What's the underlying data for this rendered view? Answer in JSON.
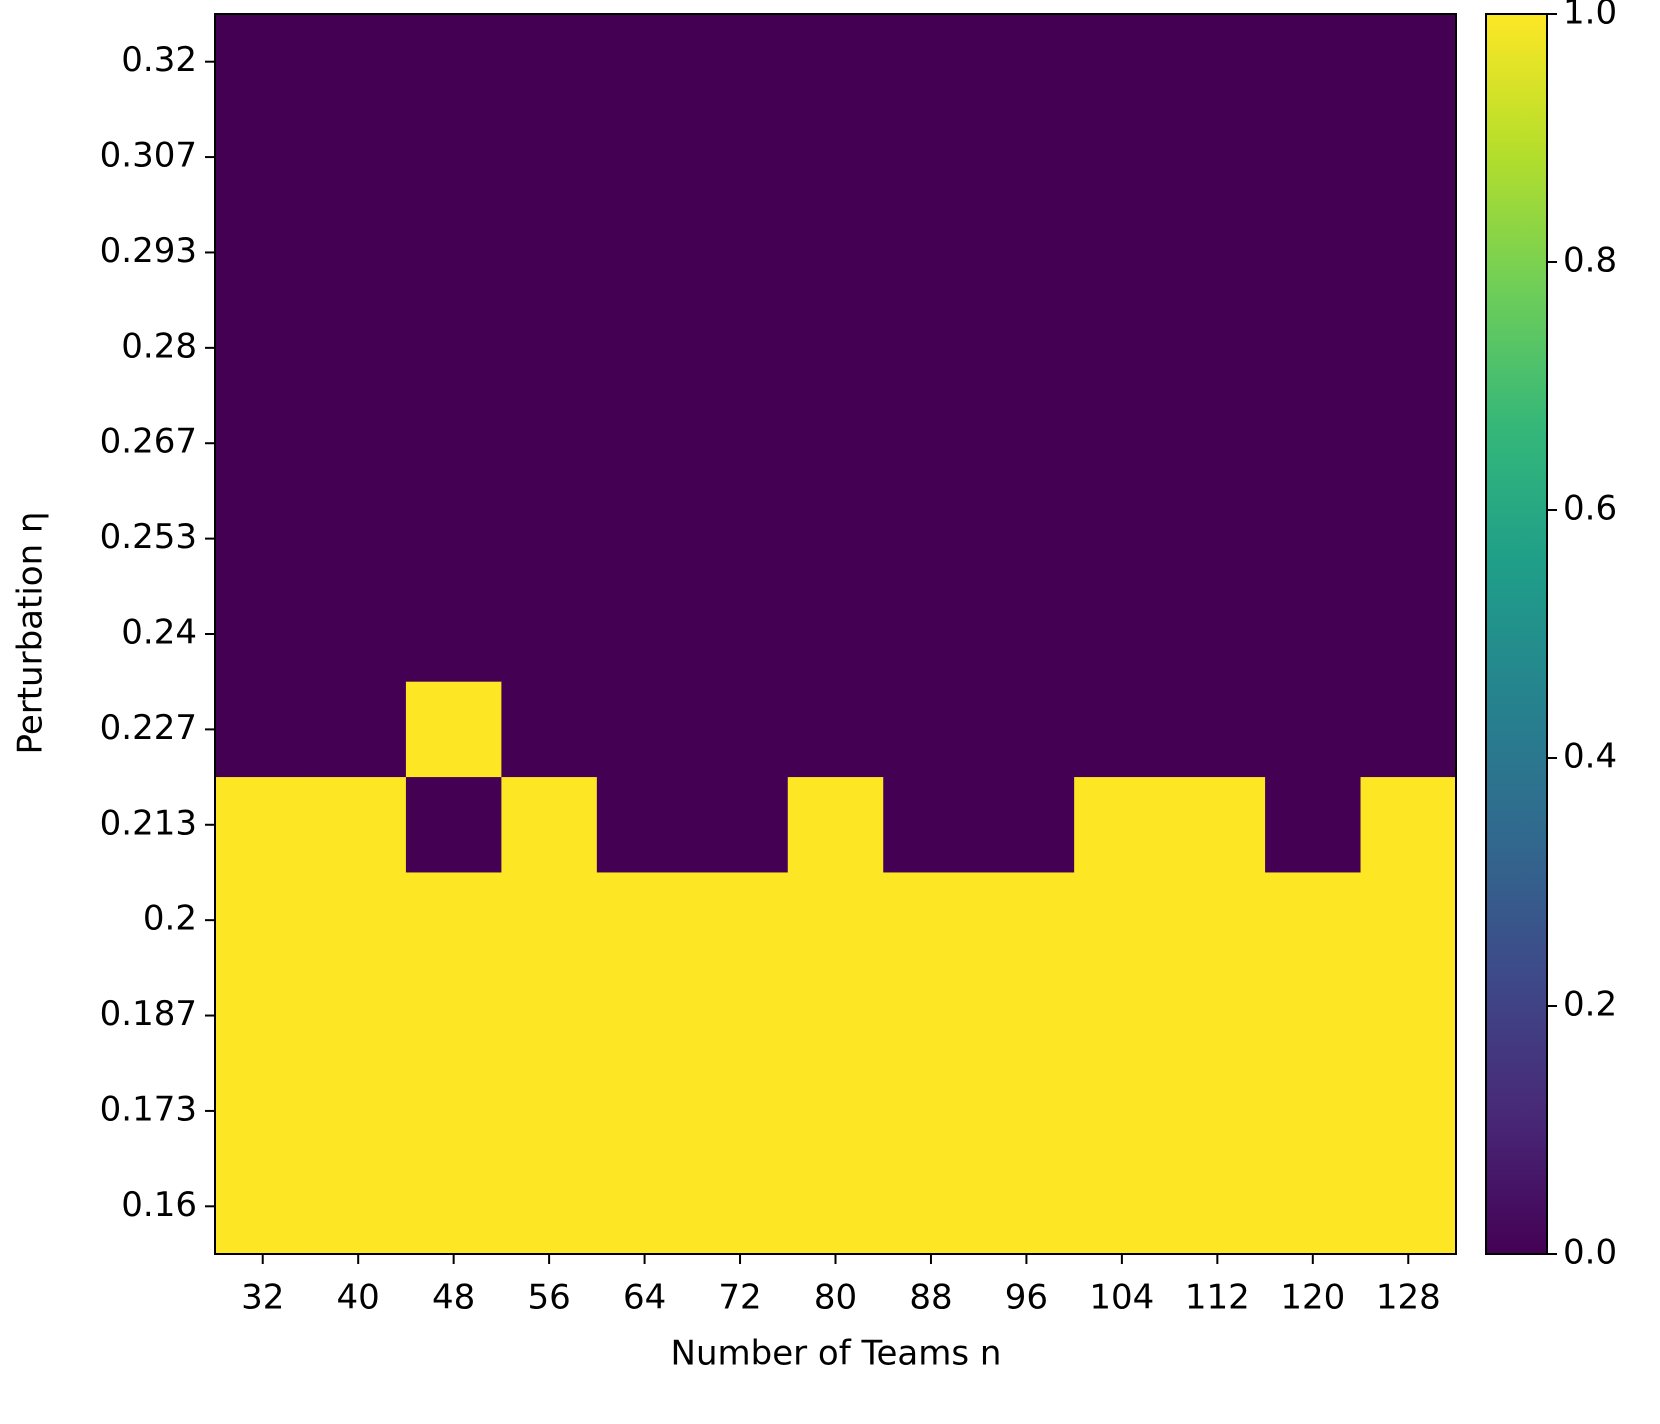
{
  "chart_data": {
    "type": "heatmap",
    "x_label": "Number of Teams n",
    "y_label": "Perturbation η",
    "x": [
      32,
      40,
      48,
      56,
      64,
      72,
      80,
      88,
      96,
      104,
      112,
      120,
      128
    ],
    "y": [
      0.32,
      0.307,
      0.293,
      0.28,
      0.267,
      0.253,
      0.24,
      0.227,
      0.213,
      0.2,
      0.187,
      0.173,
      0.16
    ],
    "values": [
      [
        0,
        0,
        0,
        0,
        0,
        0,
        0,
        0,
        0,
        0,
        0,
        0,
        0
      ],
      [
        0,
        0,
        0,
        0,
        0,
        0,
        0,
        0,
        0,
        0,
        0,
        0,
        0
      ],
      [
        0,
        0,
        0,
        0,
        0,
        0,
        0,
        0,
        0,
        0,
        0,
        0,
        0
      ],
      [
        0,
        0,
        0,
        0,
        0,
        0,
        0,
        0,
        0,
        0,
        0,
        0,
        0
      ],
      [
        0,
        0,
        0,
        0,
        0,
        0,
        0,
        0,
        0,
        0,
        0,
        0,
        0
      ],
      [
        0,
        0,
        0,
        0,
        0,
        0,
        0,
        0,
        0,
        0,
        0,
        0,
        0
      ],
      [
        0,
        0,
        0,
        0,
        0,
        0,
        0,
        0,
        0,
        0,
        0,
        0,
        0
      ],
      [
        0,
        0,
        1,
        0,
        0,
        0,
        0,
        0,
        0,
        0,
        0,
        0,
        0
      ],
      [
        1,
        1,
        0,
        1,
        0,
        0,
        1,
        0,
        0,
        1,
        1,
        0,
        1
      ],
      [
        1,
        1,
        1,
        1,
        1,
        1,
        1,
        1,
        1,
        1,
        1,
        1,
        1
      ],
      [
        1,
        1,
        1,
        1,
        1,
        1,
        1,
        1,
        1,
        1,
        1,
        1,
        1
      ],
      [
        1,
        1,
        1,
        1,
        1,
        1,
        1,
        1,
        1,
        1,
        1,
        1,
        1
      ],
      [
        1,
        1,
        1,
        1,
        1,
        1,
        1,
        1,
        1,
        1,
        1,
        1,
        1
      ]
    ],
    "colormap": [
      "#440154",
      "#482878",
      "#3e4989",
      "#31688e",
      "#26828e",
      "#1f9e89",
      "#35b779",
      "#6ece58",
      "#b5de2b",
      "#fde725"
    ],
    "zlim": [
      0,
      1
    ],
    "zticks": [
      {
        "value": 0,
        "label": "0.0"
      },
      0.2,
      0.4,
      0.6,
      0.8,
      {
        "value": 1,
        "label": "1.0"
      }
    ]
  }
}
